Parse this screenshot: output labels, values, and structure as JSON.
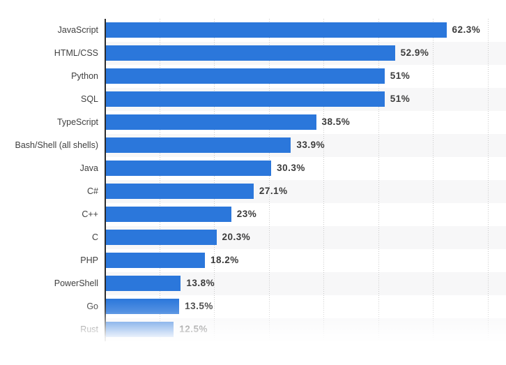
{
  "chart_data": {
    "type": "bar",
    "orientation": "horizontal",
    "title": "",
    "categories": [
      "JavaScript",
      "HTML/CSS",
      "Python",
      "SQL",
      "TypeScript",
      "Bash/Shell (all shells)",
      "Java",
      "C#",
      "C++",
      "C",
      "PHP",
      "PowerShell",
      "Go",
      "Rust"
    ],
    "values": [
      62.3,
      52.9,
      51,
      51,
      38.5,
      33.9,
      30.3,
      27.1,
      23,
      20.3,
      18.2,
      13.8,
      13.5,
      12.5
    ],
    "value_labels": [
      "62.3%",
      "52.9%",
      "51%",
      "51%",
      "38.5%",
      "33.9%",
      "30.3%",
      "27.1%",
      "23%",
      "20.3%",
      "18.2%",
      "13.8%",
      "13.5%",
      "12.5%"
    ],
    "unit": "%",
    "xlabel": "",
    "ylabel": "",
    "xlim": [
      0,
      73.2
    ],
    "gridline_values": [
      10,
      20,
      30,
      40,
      50,
      60,
      70
    ],
    "grid": "dotted vertical gridlines, no x-axis tick labels visible",
    "legend": "none",
    "row_stripes": "alternating white and light gray bands behind bars",
    "cutoff_note": "last row (Rust, 12.5%) fades out at the bottom edge of the screenshot",
    "colors": {
      "bar": "#2b77db",
      "row_stripe": "#f7f7f8",
      "axis": "#2b2b2b",
      "gridline": "#c9c9c9",
      "category_text": "#3f3f3f",
      "value_text": "#3c3c3c",
      "background": "#ffffff"
    }
  }
}
